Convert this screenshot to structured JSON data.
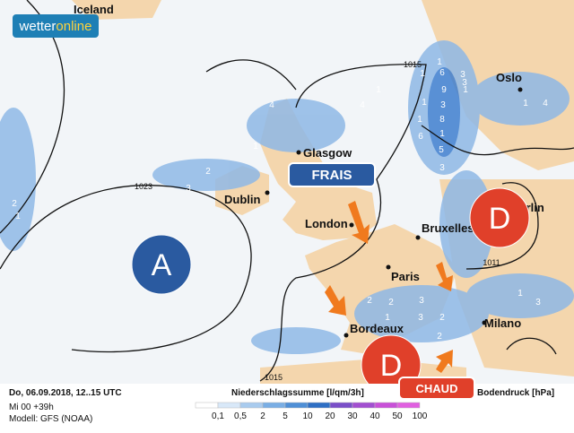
{
  "logo": {
    "part1": "wetter",
    "part2": "online"
  },
  "places": [
    "Iceland",
    "Glasgow",
    "Dublin",
    "London",
    "Bruxelles",
    "Paris",
    "Bordeaux",
    "Milano",
    "Oslo",
    "Berlin"
  ],
  "isobar_labels": [
    "1015",
    "1023",
    "1011",
    "1015"
  ],
  "pressure_systems": [
    "A",
    "D",
    "D"
  ],
  "labels": {
    "cold": "FRAIS",
    "warm": "CHAUD"
  },
  "precip_values": [
    "1",
    "6",
    "3",
    "1",
    "9",
    "1",
    "1",
    "3",
    "8",
    "1",
    "1",
    "6",
    "5",
    "3",
    "1",
    "4",
    "4",
    "1",
    "2",
    "3",
    "2",
    "1",
    "2",
    "2",
    "3",
    "2",
    "3",
    "1",
    "3",
    "1",
    "4",
    "1",
    "2",
    "3"
  ],
  "footer": {
    "date": "Do, 06.09.2018, 12..15 UTC",
    "run": "Mi 00 +39h",
    "model": "Modell: GFS (NOAA)",
    "precip_title": "Niederschlagssumme [l/qm/3h]",
    "pressure_title": "Bodendruck [hPa]"
  },
  "legend": {
    "ticks": [
      "0,1",
      "0,5",
      "2",
      "5",
      "10",
      "20",
      "30",
      "40",
      "50",
      "100"
    ],
    "colors": [
      "#ffffff",
      "#d8e8f8",
      "#a9cbee",
      "#7aaee4",
      "#4f8fd6",
      "#2f6fc4",
      "#7a4fc8",
      "#a24fd0",
      "#c850d8",
      "#e060e0"
    ]
  }
}
